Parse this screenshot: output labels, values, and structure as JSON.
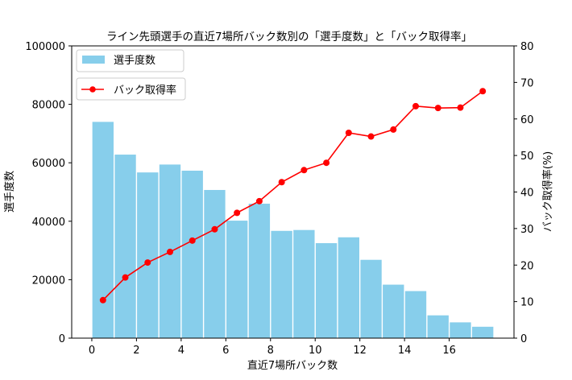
{
  "chart_data": {
    "type": "bar+line",
    "title": "ライン先頭選手の直近7場所バック数別の「選手度数」と「バック取得率」",
    "xlabel": "直近7場所バック数",
    "ylabel_left": "選手度数",
    "ylabel_right": "バック取得率(%)",
    "x": [
      0.5,
      1.5,
      2.5,
      3.5,
      4.5,
      5.5,
      6.5,
      7.5,
      8.5,
      9.5,
      10.5,
      11.5,
      12.5,
      13.5,
      14.5,
      15.5,
      16.5,
      17.5
    ],
    "xlim": [
      -0.9,
      18.9
    ],
    "x_ticks": [
      0,
      2,
      4,
      6,
      8,
      10,
      12,
      14,
      16
    ],
    "ylim_left": [
      0,
      100000
    ],
    "y_ticks_left": [
      0,
      20000,
      40000,
      60000,
      80000,
      100000
    ],
    "ylim_right": [
      0,
      80
    ],
    "y_ticks_right": [
      0,
      10,
      20,
      30,
      40,
      50,
      60,
      70,
      80
    ],
    "series": [
      {
        "name": "選手度数",
        "kind": "bar",
        "axis": "left",
        "color": "#87ceeb",
        "values": [
          74000,
          62800,
          56700,
          59400,
          57300,
          50700,
          40200,
          46000,
          36700,
          37000,
          32500,
          34500,
          26800,
          18300,
          16100,
          7800,
          5400,
          3900
        ]
      },
      {
        "name": "バック取得率",
        "kind": "line",
        "axis": "right",
        "color": "#ff0000",
        "values": [
          10.4,
          16.6,
          20.7,
          23.6,
          26.7,
          29.8,
          34.3,
          37.5,
          42.7,
          46.0,
          48.0,
          56.2,
          55.2,
          57.1,
          63.5,
          63.0,
          63.1,
          67.6
        ]
      }
    ],
    "legend_bar": "選手度数",
    "legend_line": "バック取得率",
    "legend_position": "top-left"
  }
}
